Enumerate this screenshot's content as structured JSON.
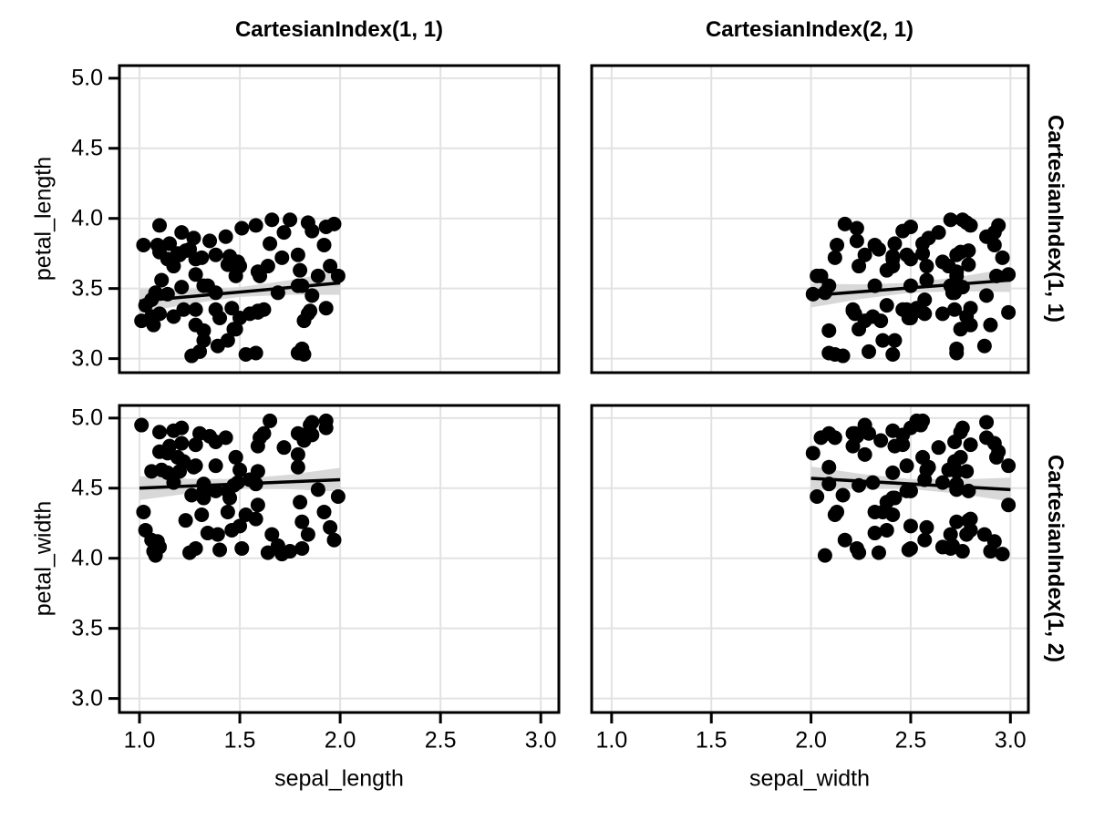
{
  "chart_data": {
    "type": "scatter",
    "title": "",
    "col_titles": [
      "CartesianIndex(1, 1)",
      "CartesianIndex(2, 1)"
    ],
    "row_labels": [
      "CartesianIndex(1, 1)",
      "CartesianIndex(1, 2)"
    ],
    "x_axis_labels": [
      "sepal_length",
      "sepal_width"
    ],
    "y_axis_labels": [
      "petal_length",
      "petal_width"
    ],
    "x_ticks": [
      1.0,
      1.5,
      2.0,
      2.5,
      3.0
    ],
    "x_tick_labels": [
      "1.0",
      "1.5",
      "2.0",
      "2.5",
      "3.0"
    ],
    "y_ticks": [
      3.0,
      3.5,
      4.0,
      4.5,
      5.0
    ],
    "y_tick_labels": [
      "3.0",
      "3.5",
      "4.0",
      "4.5",
      "5.0"
    ],
    "xlim": [
      0.9,
      3.09
    ],
    "ylim": [
      2.9,
      5.09
    ],
    "grid": true,
    "legend": "none",
    "marker_color": "#000000",
    "marker_radius": 8,
    "fit_line_color": "#000000",
    "fit_line_width": 3.5,
    "band_color": "#d8d8d8",
    "grid_color": "#e2e2e2",
    "frame_color": "#000000",
    "band_halfwidths": [
      0.085,
      0.052,
      0.035,
      0.052,
      0.085
    ],
    "variables": {
      "sepal_length": [
        1.14,
        1.15,
        1.92,
        1.65,
        1.35,
        1.89,
        1.79,
        1.32,
        1.38,
        1.46,
        1.26,
        1.43,
        1.38,
        1.32,
        1.79,
        1.5,
        1.28,
        1.84,
        1.19,
        1.71,
        1.69,
        1.39,
        1.93,
        1.75,
        1.1,
        1.58,
        1.2,
        1.97,
        1.49,
        1.44,
        1.59,
        1.23,
        1.07,
        1.81,
        1.64,
        1.06,
        1.28,
        1.62,
        1.08,
        1.99,
        1.86,
        1.28,
        1.03,
        1.48,
        1.25,
        1.34,
        1.21,
        1.17,
        1.06,
        1.79,
        1.82,
        1.14,
        1.8,
        1.86,
        1.51,
        1.32,
        1.82,
        1.3,
        1.66,
        1.47,
        1.09,
        1.38,
        1.44,
        1.6,
        1.95,
        1.5,
        1.58,
        1.22,
        1.31,
        1.72,
        1.53,
        1.59,
        1.4,
        1.81,
        1.28,
        1.48,
        1.11,
        1.17,
        1.45,
        1.02,
        1.84,
        1.1,
        1.27,
        1.01,
        1.93,
        1.85,
        1.21,
        1.1,
        1.55,
        1.59
      ],
      "sepal_width": [
        2.41,
        2.42,
        2.13,
        2.56,
        2.23,
        2.73,
        2.09,
        2.5,
        2.48,
        2.8,
        2.16,
        2.88,
        2.72,
        2.42,
        2.09,
        2.69,
        2.8,
        2.78,
        2.56,
        2.96,
        2.71,
        2.87,
        2.53,
        2.76,
        2.94,
        2.8,
        2.73,
        2.17,
        2.66,
        2.79,
        2.73,
        2.79,
        2.9,
        2.73,
        2.24,
        2.78,
        2.46,
        2.21,
        2.07,
        2.03,
        2.88,
        2.5,
        2.38,
        2.75,
        2.34,
        2.32,
        2.76,
        2.41,
        2.57,
        2.27,
        2.35,
        2.01,
        2.38,
        2.46,
        2.23,
        2.09,
        2.12,
        2.29,
        2.7,
        2.24,
        2.92,
        2.48,
        2.36,
        2.05,
        2.58,
        2.5,
        2.73,
        2.72,
        2.12,
        2.64,
        2.41,
        2.21,
        2.49,
        2.7,
        2.99,
        2.93,
        2.58,
        2.31,
        2.41,
        2.32,
        2.22,
        2.66,
        2.59,
        2.27,
        2.5,
        2.55,
        2.92,
        2.75,
        2.57,
        2.99
      ],
      "petal_length": [
        3.71,
        3.82,
        3.81,
        3.82,
        3.84,
        3.59,
        3.04,
        3.52,
        3.35,
        3.36,
        3.02,
        3.87,
        3.47,
        3.13,
        3.52,
        3.66,
        3.24,
        3.97,
        3.75,
        3.72,
        3.47,
        3.09,
        3.36,
        3.99,
        3.95,
        3.95,
        3.74,
        3.96,
        3.69,
        3.67,
        3.62,
        3.77,
        3.24,
        3.07,
        3.66,
        3.3,
        3.35,
        3.35,
        3.47,
        3.59,
        3.45,
        3.71,
        3.38,
        3.21,
        3.78,
        3.52,
        3.51,
        3.66,
        3.42,
        3.74,
        3.27,
        3.46,
        3.63,
        3.91,
        3.93,
        3.2,
        3.03,
        3.05,
        3.99,
        3.21,
        3.81,
        3.74,
        3.13,
        3.59,
        3.66,
        3.29,
        3.04,
        3.35,
        3.72,
        3.9,
        3.03,
        3.34,
        3.29,
        3.52,
        3.6,
        3.59,
        3.56,
        3.3,
        3.73,
        3.81,
        3.32,
        3.32,
        3.86,
        3.27,
        3.94,
        3.34,
        3.9,
        3.76,
        3.32,
        3.33
      ],
      "petal_width": [
        4.61,
        4.8,
        4.33,
        4.98,
        4.87,
        4.49,
        4.89,
        4.48,
        4.48,
        4.2,
        4.45,
        4.86,
        4.83,
        4.43,
        4.65,
        4.63,
        4.81,
        4.17,
        4.72,
        4.03,
        4.09,
        4.17,
        4.98,
        4.05,
        4.76,
        4.28,
        4.62,
        4.13,
        4.54,
        4.48,
        4.62,
        4.27,
        4.05,
        4.26,
        4.04,
        4.62,
        4.81,
        4.89,
        4.02,
        4.44,
        4.97,
        4.07,
        4.2,
        4.72,
        4.04,
        4.18,
        4.93,
        4.91,
        4.13,
        4.74,
        4.84,
        4.75,
        4.4,
        4.88,
        4.07,
        4.53,
        4.86,
        4.89,
        4.17,
        4.52,
        4.12,
        4.66,
        4.33,
        4.86,
        4.22,
        4.23,
        4.53,
        4.69,
        4.31,
        4.79,
        4.31,
        4.8,
        4.06,
        4.07,
        4.66,
        4.72,
        4.63,
        4.54,
        4.43,
        4.33,
        4.89,
        4.08,
        4.65,
        4.95,
        4.93,
        4.95,
        4.82,
        4.9,
        4.56,
        4.38
      ]
    },
    "panels": [
      {
        "row": 0,
        "col": 0,
        "x": "sepal_length",
        "y": "petal_length",
        "fit": {
          "x": [
            1.0,
            2.0
          ],
          "y": [
            3.41,
            3.54
          ]
        }
      },
      {
        "row": 0,
        "col": 1,
        "x": "sepal_width",
        "y": "petal_length",
        "fit": {
          "x": [
            2.0,
            3.0
          ],
          "y": [
            3.45,
            3.56
          ]
        }
      },
      {
        "row": 1,
        "col": 0,
        "x": "sepal_length",
        "y": "petal_width",
        "fit": {
          "x": [
            1.0,
            2.0
          ],
          "y": [
            4.5,
            4.56
          ]
        }
      },
      {
        "row": 1,
        "col": 1,
        "x": "sepal_width",
        "y": "petal_width",
        "fit": {
          "x": [
            2.0,
            3.0
          ],
          "y": [
            4.57,
            4.49
          ]
        }
      }
    ]
  }
}
